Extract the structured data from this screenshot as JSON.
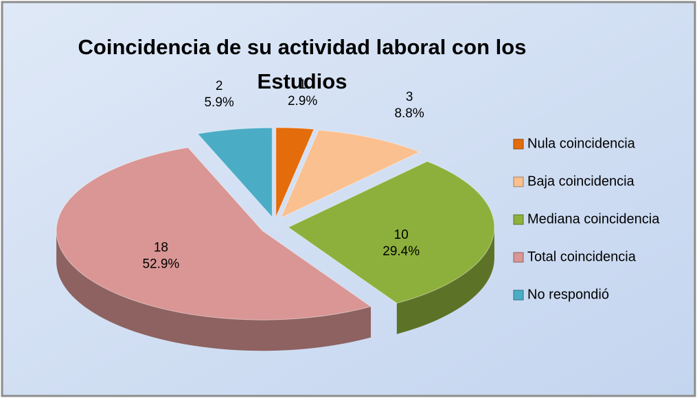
{
  "chart_data": {
    "type": "pie",
    "title": "Coincidencia de su actividad laboral con los Estudios",
    "categories": [
      "Nula coincidencia",
      "Baja coincidencia",
      "Mediana coincidencia",
      "Total coincidencia",
      "No respondió"
    ],
    "values": [
      1,
      3,
      10,
      18,
      2
    ],
    "percentages": [
      2.9,
      8.8,
      29.4,
      52.9,
      5.9
    ],
    "percentage_labels": [
      "2.9%",
      "8.8%",
      "29.4%",
      "52.9%",
      "5.9%"
    ],
    "colors": [
      "#e46c0a",
      "#fac090",
      "#8db03c",
      "#d99694",
      "#4bacc6"
    ],
    "legend": "right"
  }
}
